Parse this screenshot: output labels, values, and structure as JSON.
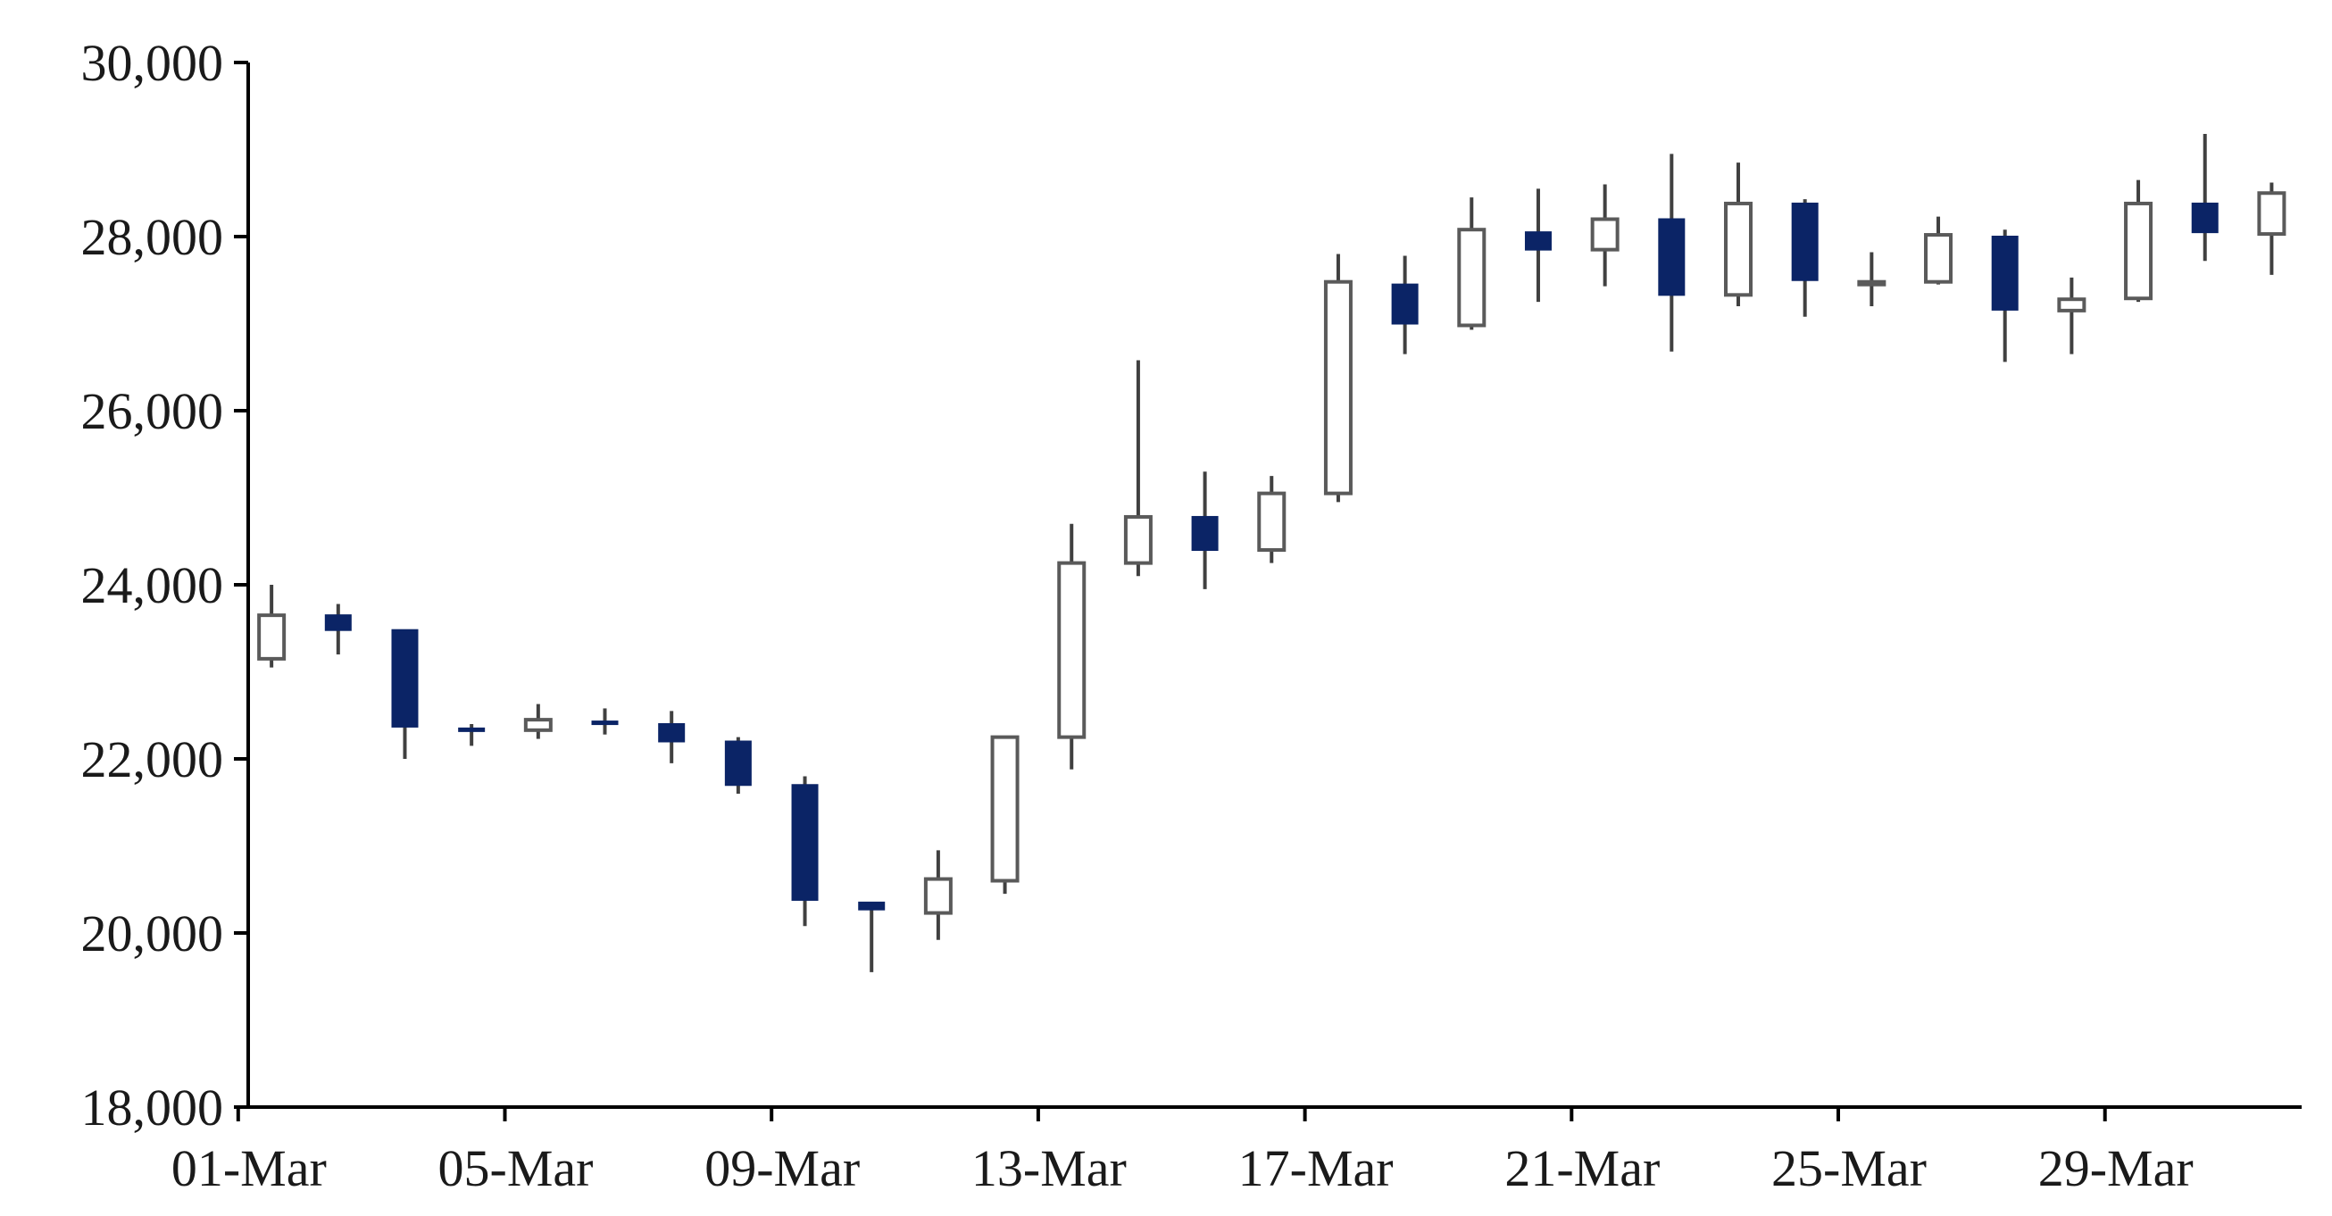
{
  "chart_data": {
    "type": "candlestick",
    "title": "",
    "xlabel": "",
    "ylabel": "",
    "ylim": [
      18000,
      30000
    ],
    "y_ticks": [
      18000,
      20000,
      22000,
      24000,
      26000,
      28000,
      30000
    ],
    "y_tick_labels": [
      "18,000",
      "20,000",
      "22,000",
      "24,000",
      "26,000",
      "28,000",
      "30,000"
    ],
    "x_tick_labels": [
      "01-Mar",
      "05-Mar",
      "09-Mar",
      "13-Mar",
      "17-Mar",
      "21-Mar",
      "25-Mar",
      "29-Mar"
    ],
    "x_tick_positions": [
      1,
      5,
      9,
      13,
      17,
      21,
      25,
      29
    ],
    "grid": false,
    "legend": "none",
    "colors": {
      "up_fill": "#ffffff",
      "up_stroke": "#5a5a5a",
      "down_fill": "#0b2466",
      "down_stroke": "#0b2466",
      "wick": "#404040"
    },
    "candles": [
      {
        "day": 1,
        "open": 23150,
        "high": 24000,
        "low": 23050,
        "close": 23650
      },
      {
        "day": 2,
        "open": 23650,
        "high": 23780,
        "low": 23200,
        "close": 23480
      },
      {
        "day": 3,
        "open": 23480,
        "high": 23480,
        "low": 22000,
        "close": 22370
      },
      {
        "day": 4,
        "open": 22350,
        "high": 22400,
        "low": 22150,
        "close": 22330
      },
      {
        "day": 5,
        "open": 22330,
        "high": 22630,
        "low": 22230,
        "close": 22450
      },
      {
        "day": 6,
        "open": 22430,
        "high": 22580,
        "low": 22280,
        "close": 22400
      },
      {
        "day": 7,
        "open": 22400,
        "high": 22550,
        "low": 21950,
        "close": 22200
      },
      {
        "day": 8,
        "open": 22200,
        "high": 22250,
        "low": 21600,
        "close": 21700
      },
      {
        "day": 9,
        "open": 21700,
        "high": 21800,
        "low": 20080,
        "close": 20380
      },
      {
        "day": 10,
        "open": 20350,
        "high": 20350,
        "low": 19550,
        "close": 20270
      },
      {
        "day": 11,
        "open": 20230,
        "high": 20950,
        "low": 19920,
        "close": 20620
      },
      {
        "day": 12,
        "open": 20600,
        "high": 22250,
        "low": 20450,
        "close": 22250
      },
      {
        "day": 13,
        "open": 22250,
        "high": 24700,
        "low": 21880,
        "close": 24250
      },
      {
        "day": 14,
        "open": 24250,
        "high": 26580,
        "low": 24100,
        "close": 24780
      },
      {
        "day": 15,
        "open": 24780,
        "high": 25300,
        "low": 23950,
        "close": 24400
      },
      {
        "day": 16,
        "open": 24400,
        "high": 25250,
        "low": 24250,
        "close": 25050
      },
      {
        "day": 17,
        "open": 25050,
        "high": 27800,
        "low": 24950,
        "close": 27480
      },
      {
        "day": 18,
        "open": 27450,
        "high": 27780,
        "low": 26650,
        "close": 27000
      },
      {
        "day": 19,
        "open": 26980,
        "high": 28450,
        "low": 26930,
        "close": 28080
      },
      {
        "day": 20,
        "open": 28050,
        "high": 28550,
        "low": 27250,
        "close": 27850
      },
      {
        "day": 21,
        "open": 27850,
        "high": 28600,
        "low": 27430,
        "close": 28200
      },
      {
        "day": 22,
        "open": 28200,
        "high": 28950,
        "low": 26680,
        "close": 27330
      },
      {
        "day": 23,
        "open": 27330,
        "high": 28850,
        "low": 27200,
        "close": 28380
      },
      {
        "day": 24,
        "open": 28380,
        "high": 28430,
        "low": 27080,
        "close": 27500
      },
      {
        "day": 25,
        "open": 27480,
        "high": 27820,
        "low": 27200,
        "close": 27480
      },
      {
        "day": 26,
        "open": 27480,
        "high": 28230,
        "low": 27450,
        "close": 28020
      },
      {
        "day": 27,
        "open": 28000,
        "high": 28080,
        "low": 26560,
        "close": 27160
      },
      {
        "day": 28,
        "open": 27150,
        "high": 27530,
        "low": 26650,
        "close": 27280
      },
      {
        "day": 29,
        "open": 27290,
        "high": 28650,
        "low": 27250,
        "close": 28380
      },
      {
        "day": 30,
        "open": 28380,
        "high": 29180,
        "low": 27720,
        "close": 28050
      },
      {
        "day": 31,
        "open": 28030,
        "high": 28620,
        "low": 27560,
        "close": 28500
      }
    ]
  }
}
